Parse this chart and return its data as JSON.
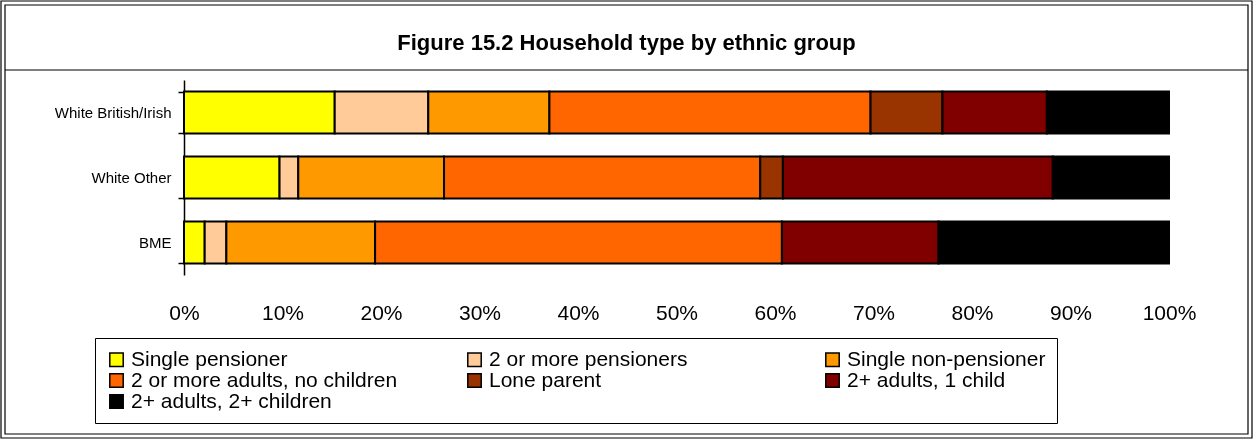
{
  "chart_data": {
    "type": "bar",
    "orientation": "horizontal",
    "stacked": true,
    "title": "Figure 15.2 Household type by ethnic group",
    "categories": [
      "White British/Irish",
      "White Other",
      "BME"
    ],
    "series": [
      {
        "name": "Single pensioner",
        "color": "#ffff00",
        "values": [
          15.3,
          9.7,
          2.1
        ]
      },
      {
        "name": "2 or more pensioners",
        "color": "#ffcc99",
        "values": [
          9.5,
          1.9,
          2.2
        ]
      },
      {
        "name": "Single non-pensioner",
        "color": "#ff9900",
        "values": [
          12.3,
          14.8,
          15.1
        ]
      },
      {
        "name": "2 or more adults, no children",
        "color": "#ff6600",
        "values": [
          32.6,
          32.1,
          41.3
        ]
      },
      {
        "name": "Lone parent",
        "color": "#993300",
        "values": [
          7.3,
          2.3,
          null
        ]
      },
      {
        "name": "2+ adults, 1 child",
        "color": "#800000",
        "values": [
          10.6,
          27.4,
          15.9
        ]
      },
      {
        "name": "2+ adults, 2+ children",
        "color": "#000000",
        "values": [
          12.4,
          11.8,
          23.4
        ]
      }
    ],
    "xlim": [
      0,
      100
    ],
    "xticks": [
      {
        "value": 0,
        "label": "0%"
      },
      {
        "value": 10,
        "label": "10%"
      },
      {
        "value": 20,
        "label": "20%"
      },
      {
        "value": 30,
        "label": "30%"
      },
      {
        "value": 40,
        "label": "40%"
      },
      {
        "value": 50,
        "label": "50%"
      },
      {
        "value": 60,
        "label": "60%"
      },
      {
        "value": 70,
        "label": "70%"
      },
      {
        "value": 80,
        "label": "80%"
      },
      {
        "value": 90,
        "label": "90%"
      },
      {
        "value": 100,
        "label": "100%"
      }
    ],
    "legend": "bottom"
  }
}
